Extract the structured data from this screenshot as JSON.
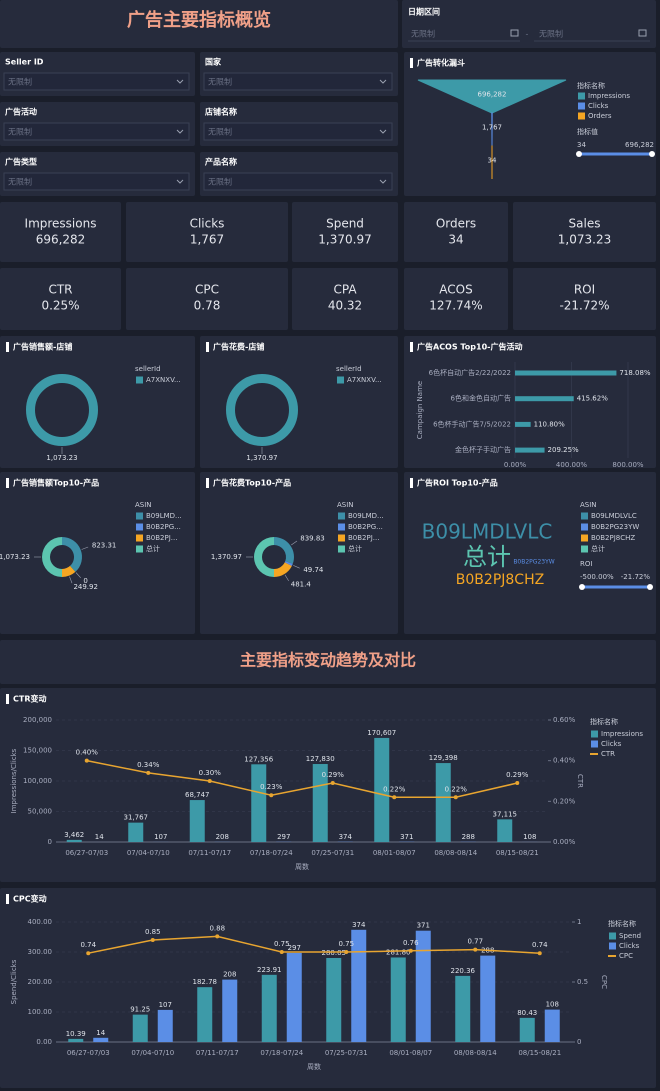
{
  "header": {
    "title": "广告主要指标概览"
  },
  "date_range": {
    "label": "日期区间",
    "start": "无限制",
    "separator": "-",
    "end": "无限制"
  },
  "filters": [
    {
      "label": "Seller ID",
      "value": "无限制"
    },
    {
      "label": "国家",
      "value": "无限制"
    },
    {
      "label": "广告活动",
      "value": "无限制"
    },
    {
      "label": "店铺名称",
      "value": "无限制"
    },
    {
      "label": "广告类型",
      "value": "无限制"
    },
    {
      "label": "产品名称",
      "value": "无限制"
    }
  ],
  "kpis": [
    {
      "label": "Impressions",
      "value": "696,282"
    },
    {
      "label": "Clicks",
      "value": "1,767"
    },
    {
      "label": "Spend",
      "value": "1,370.97"
    },
    {
      "label": "Orders",
      "value": "34"
    },
    {
      "label": "Sales",
      "value": "1,073.23"
    },
    {
      "label": "CTR",
      "value": "0.25%"
    },
    {
      "label": "CPC",
      "value": "0.78"
    },
    {
      "label": "CPA",
      "value": "40.32"
    },
    {
      "label": "ACOS",
      "value": "127.74%"
    },
    {
      "label": "ROI",
      "value": "-21.72%"
    }
  ],
  "section_title": "主要指标变动趋势及对比",
  "roi_panel": {
    "title": "广告ROI Top10-产品",
    "legend_title": "ASIN",
    "items": [
      {
        "name": "B09LMDLVLC",
        "color": "#3d8fa8"
      },
      {
        "name": "B0B2PG23YW",
        "color": "#5b8ee6"
      },
      {
        "name": "B0B2PJ8CHZ",
        "color": "#f5a623"
      },
      {
        "name": "总计",
        "color": "#5cc5b0"
      }
    ],
    "range_title": "ROI",
    "range": [
      "-500.00%",
      "-21.72%"
    ]
  },
  "chart_data": [
    {
      "type": "funnel",
      "title": "广告转化漏斗",
      "legend_title": "指标名称",
      "categories": [
        "Impressions",
        "Clicks",
        "Orders"
      ],
      "values": [
        696282,
        1767,
        34
      ],
      "value_labels": [
        "696,282",
        "1,767",
        "34"
      ],
      "colors": [
        "#3d9aa8",
        "#5b8ee6",
        "#f5a623"
      ],
      "range_title": "指标值",
      "range": [
        "34",
        "696,282"
      ]
    },
    {
      "type": "pie",
      "title": "广告销售额-店铺",
      "legend_title": "sellerId",
      "categories": [
        "A7XNXV..."
      ],
      "values": [
        1073.23
      ],
      "value_labels": [
        "1,073.23"
      ],
      "colors": [
        "#3d9aa8"
      ]
    },
    {
      "type": "pie",
      "title": "广告花费-店铺",
      "legend_title": "sellerId",
      "categories": [
        "A7XNXV..."
      ],
      "values": [
        1370.97
      ],
      "value_labels": [
        "1,370.97"
      ],
      "colors": [
        "#3d9aa8"
      ]
    },
    {
      "type": "hbar",
      "title": "广告ACOS Top10-广告活动",
      "y_title": "Campaign Name",
      "categories": [
        "6色杯自动广告2/22/2022",
        "6色和金色自动广告",
        "6色杯手动广告7/5/2022",
        "金色杯子手动广告"
      ],
      "values": [
        718.08,
        415.62,
        110.8,
        209.25
      ],
      "value_labels": [
        "718.08%",
        "415.62%",
        "110.80%",
        "209.25%"
      ],
      "color": "#3d9aa8",
      "xlim": [
        0,
        800
      ],
      "xticks": [
        {
          "value": 0,
          "label": "0.00%"
        },
        {
          "value": 400,
          "label": "400.00%"
        },
        {
          "value": 800,
          "label": "800.00%"
        }
      ],
      "grid": true
    },
    {
      "type": "pie",
      "title": "广告销售额Top10-产品",
      "legend_title": "ASIN",
      "categories": [
        "B09LMD...",
        "B0B2PG...",
        "B0B2PJ...",
        "总计"
      ],
      "values": [
        823.31,
        0,
        249.92,
        1073.23
      ],
      "value_labels": [
        "823.31",
        "0",
        "249.92",
        "1,073.23"
      ],
      "colors": [
        "#3d8fa8",
        "#5b8ee6",
        "#f5a623",
        "#5cc5b0"
      ]
    },
    {
      "type": "pie",
      "title": "广告花费Top10-产品",
      "legend_title": "ASIN",
      "categories": [
        "B09LMD...",
        "B0B2PG...",
        "B0B2PJ...",
        "总计"
      ],
      "values": [
        839.83,
        49.74,
        481.4,
        1370.97
      ],
      "value_labels": [
        "839.83",
        "49.74",
        "481.4",
        "1,370.97"
      ],
      "colors": [
        "#3d8fa8",
        "#5b8ee6",
        "#f5a623",
        "#5cc5b0"
      ]
    },
    {
      "type": "combo",
      "title": "CTR变动",
      "x_title": "周数",
      "y_title": "Impressions/Clicks",
      "y2_title": "CTR",
      "legend_title": "指标名称",
      "grid": true,
      "categories": [
        "06/27-07/03",
        "07/04-07/10",
        "07/11-07/17",
        "07/18-07/24",
        "07/25-07/31",
        "08/01-08/07",
        "08/08-08/14",
        "08/15-08/21"
      ],
      "series": [
        {
          "name": "Impressions",
          "type": "bar",
          "color": "#3d9aa8",
          "values": [
            3462,
            31767,
            68747,
            127356,
            127830,
            170607,
            129398,
            37115
          ],
          "value_labels": [
            "3,462",
            "31,767",
            "68,747",
            "127,356",
            "127,830",
            "170,607",
            "129,398",
            "37,115"
          ]
        },
        {
          "name": "Clicks",
          "type": "bar",
          "color": "#5b8ee6",
          "values": [
            14,
            107,
            208,
            297,
            374,
            371,
            288,
            108
          ]
        },
        {
          "name": "CTR",
          "type": "line",
          "axis": "y2",
          "color": "#e8a530",
          "values": [
            0.4,
            0.34,
            0.3,
            0.23,
            0.29,
            0.22,
            0.22,
            0.29
          ],
          "value_labels": [
            "0.40%",
            "0.34%",
            "0.30%",
            "0.23%",
            "0.29%",
            "0.22%",
            "0.22%",
            "0.29%"
          ]
        }
      ],
      "ylim": [
        0,
        200000
      ],
      "yticks": [
        0,
        {
          "value": 50000,
          "label": "50,000"
        },
        {
          "value": 100000,
          "label": "100,000"
        },
        {
          "value": 150000,
          "label": "150,000"
        },
        {
          "value": 200000,
          "label": "200,000"
        }
      ],
      "y2lim": [
        0,
        0.6
      ],
      "y2ticks": [
        {
          "value": 0,
          "label": "0.00%"
        },
        {
          "value": 0.2,
          "label": "0.20%"
        },
        {
          "value": 0.4,
          "label": "0.40%"
        },
        {
          "value": 0.6,
          "label": "0.60%"
        }
      ]
    },
    {
      "type": "combo",
      "title": "CPC变动",
      "x_title": "周数",
      "y_title": "Spend/Clicks",
      "y2_title": "CPC",
      "legend_title": "指标名称",
      "grid": true,
      "categories": [
        "06/27-07/03",
        "07/04-07/10",
        "07/11-07/17",
        "07/18-07/24",
        "07/25-07/31",
        "08/01-08/07",
        "08/08-08/14",
        "08/15-08/21"
      ],
      "series": [
        {
          "name": "Spend",
          "type": "bar",
          "color": "#3d9aa8",
          "values": [
            10.39,
            91.25,
            182.78,
            223.91,
            280.05,
            281.8,
            220.36,
            80.43
          ],
          "value_labels": [
            "10.39",
            "91.25",
            "182.78",
            "223.91",
            "280.05",
            "281.80",
            "220.36",
            "80.43"
          ]
        },
        {
          "name": "Clicks",
          "type": "bar",
          "color": "#5b8ee6",
          "values": [
            14,
            107,
            208,
            297,
            374,
            371,
            288,
            108
          ]
        },
        {
          "name": "CPC",
          "type": "line",
          "axis": "y2",
          "color": "#e8a530",
          "values": [
            0.74,
            0.85,
            0.88,
            0.75,
            0.75,
            0.76,
            0.77,
            0.74
          ]
        }
      ],
      "ylim": [
        0,
        400
      ],
      "yticks": [
        {
          "value": 0,
          "label": "0.00"
        },
        {
          "value": 100,
          "label": "100.00"
        },
        {
          "value": 200,
          "label": "200.00"
        },
        {
          "value": 300,
          "label": "300.00"
        },
        {
          "value": 400,
          "label": "400.00"
        }
      ],
      "y2lim": [
        0,
        1
      ],
      "y2ticks": [
        0,
        0.5,
        1
      ]
    }
  ]
}
